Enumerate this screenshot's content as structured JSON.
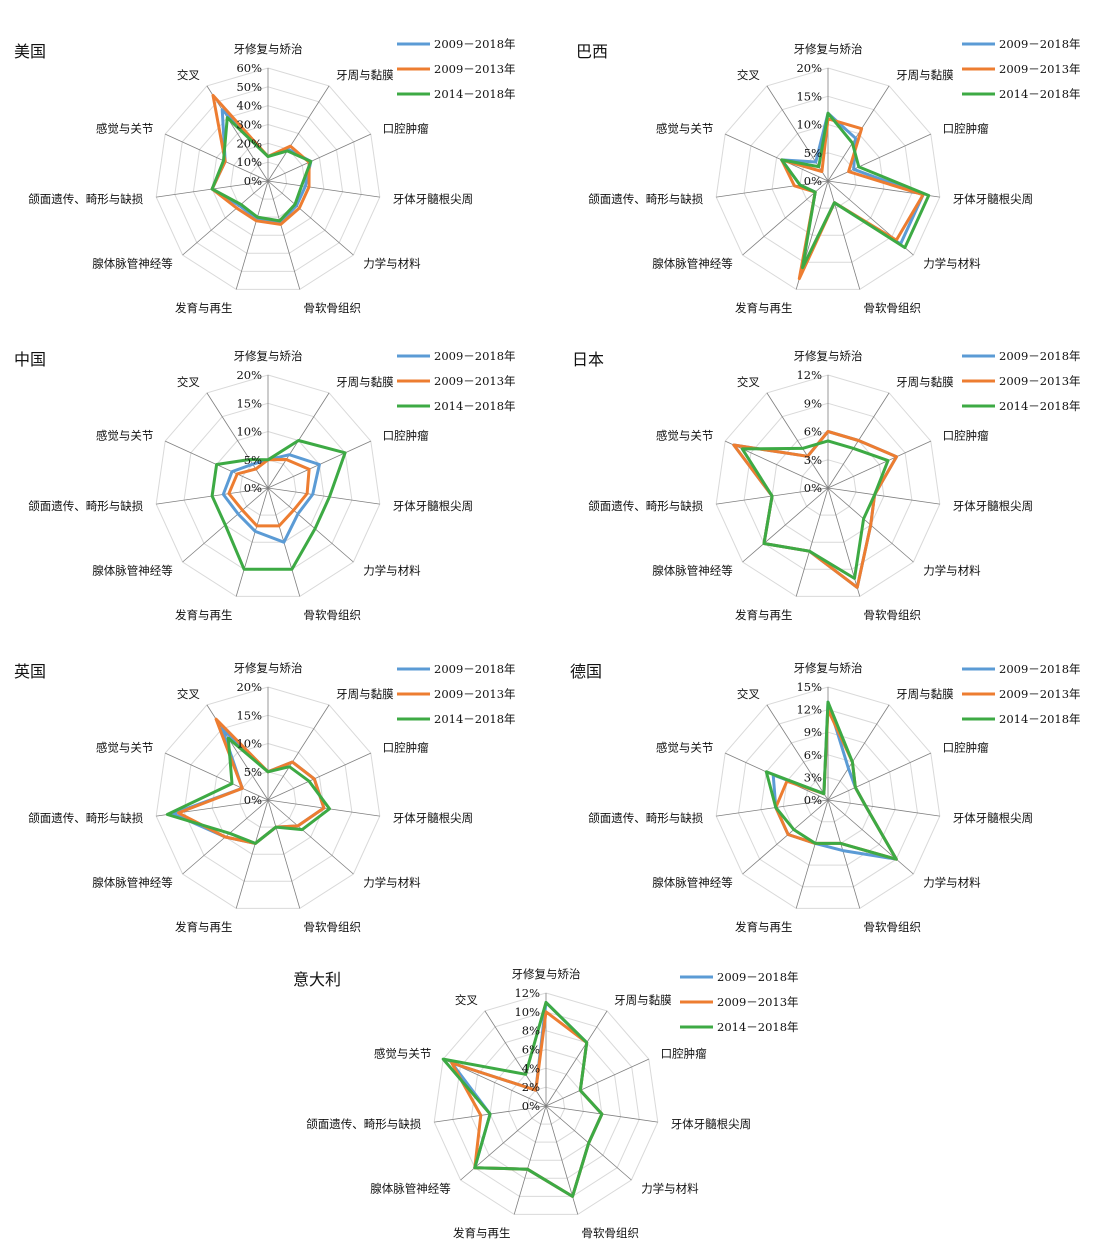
{
  "chart_data": {
    "type": "radar",
    "axes": [
      "牙修复与矫治",
      "牙周与黏膜",
      "口腔肿瘤",
      "牙体牙髓根尖周",
      "力学与材料",
      "骨软骨组织",
      "发育与再生",
      "腺体脉管神经等",
      "颌面遗传、畸形与缺损",
      "感觉与关节",
      "交叉"
    ],
    "legend": [
      "2009－2018年",
      "2009－2013年",
      "2014－2018年"
    ],
    "series_colors": [
      "#5b9bd5",
      "#ed7d31",
      "#3daa44"
    ],
    "charts": [
      {
        "title": "美国",
        "ticks": [
          "0%",
          "10%",
          "20%",
          "30%",
          "40%",
          "50%",
          "60%"
        ],
        "max": 60,
        "series": [
          {
            "name": "2009－2018年",
            "values": [
              13,
              20,
              25,
              20,
              20,
              23,
              21,
              20,
              30,
              25,
              45
            ]
          },
          {
            "name": "2009－2013年",
            "values": [
              13,
              22,
              24,
              22,
              22,
              24,
              22,
              22,
              30,
              25,
              54
            ]
          },
          {
            "name": "2014－2018年",
            "values": [
              13,
              19,
              25,
              18,
              19,
              22,
              20,
              19,
              30,
              26,
              40
            ]
          }
        ]
      },
      {
        "title": "巴西",
        "ticks": [
          "0%",
          "5%",
          "10%",
          "15%",
          "20%"
        ],
        "max": 20,
        "series": [
          {
            "name": "2009－2018年",
            "values": [
              12,
              9,
              5,
              17,
              17,
              4,
              17,
              3,
              5,
              9,
              4
            ]
          },
          {
            "name": "2009－2013年",
            "values": [
              11,
              11,
              4,
              17,
              16,
              4,
              18,
              3,
              6,
              9,
              2
            ]
          },
          {
            "name": "2014－2018年",
            "values": [
              12,
              8,
              6,
              18,
              18,
              4,
              16,
              3,
              5,
              9,
              3
            ]
          }
        ]
      },
      {
        "title": "中国",
        "ticks": [
          "0%",
          "5%",
          "10%",
          "15%",
          "20%"
        ],
        "max": 20,
        "series": [
          {
            "name": "2009－2018年",
            "values": [
              5,
              7,
              10,
              8,
              7,
              10,
              8,
              7,
              8,
              7,
              5
            ]
          },
          {
            "name": "2009－2013年",
            "values": [
              5,
              6,
              8,
              7,
              6,
              7,
              7,
              6,
              7,
              6,
              4
            ]
          },
          {
            "name": "2014－2018年",
            "values": [
              5,
              10,
              15,
              11,
              11,
              15,
              15,
              10,
              10,
              10,
              6
            ]
          }
        ]
      },
      {
        "title": "日本",
        "ticks": [
          "0%",
          "3%",
          "6%",
          "9%",
          "12%"
        ],
        "max": 12,
        "series": [
          {
            "name": "2009－2018年",
            "values": [
              6,
              6,
              8,
              5,
              6,
              11,
              7,
              9,
              6,
              11,
              4
            ]
          },
          {
            "name": "2009－2013年",
            "values": [
              6,
              6,
              8,
              5,
              6,
              11,
              7,
              9,
              6,
              11,
              4
            ]
          },
          {
            "name": "2014－2018年",
            "values": [
              5,
              5,
              7,
              5,
              5,
              10,
              7,
              9,
              6,
              10,
              5
            ]
          }
        ]
      },
      {
        "title": "英国",
        "ticks": [
          "0%",
          "5%",
          "10%",
          "15%",
          "20%"
        ],
        "max": 20,
        "series": [
          {
            "name": "2009－2018年",
            "values": [
              5,
              8,
              9,
              10,
              7,
              5,
              8,
              10,
              17,
              5,
              15
            ]
          },
          {
            "name": "2009－2013年",
            "values": [
              5,
              8,
              9,
              10,
              7,
              5,
              8,
              10,
              16,
              5,
              17
            ]
          },
          {
            "name": "2014－2018年",
            "values": [
              5,
              7,
              8,
              11,
              8,
              5,
              8,
              9,
              18,
              7,
              13
            ]
          }
        ]
      },
      {
        "title": "德国",
        "ticks": [
          "0%",
          "3%",
          "6%",
          "9%",
          "12%",
          "15%"
        ],
        "max": 15,
        "series": [
          {
            "name": "2009－2018年",
            "values": [
              13,
              5,
              4,
              5,
              12,
              7,
              6,
              7,
              7,
              8,
              1
            ]
          },
          {
            "name": "2009－2013年",
            "values": [
              12,
              6,
              4,
              5,
              12,
              6,
              6,
              7,
              7,
              6,
              1
            ]
          },
          {
            "name": "2014－2018年",
            "values": [
              13,
              6,
              4,
              5,
              12,
              6,
              6,
              6,
              7,
              9,
              1
            ]
          }
        ]
      },
      {
        "title": "意大利",
        "ticks": [
          "0%",
          "2%",
          "4%",
          "6%",
          "8%",
          "10%",
          "12%"
        ],
        "max": 12,
        "series": [
          {
            "name": "2009－2018年",
            "values": [
              11,
              8,
              4,
              6,
              6,
              10,
              7,
              10,
              6,
              11,
              2
            ]
          },
          {
            "name": "2009－2013年",
            "values": [
              10,
              8,
              4,
              6,
              6,
              10,
              7,
              10,
              7,
              11,
              2
            ]
          },
          {
            "name": "2014－2018年",
            "values": [
              11,
              8,
              4,
              6,
              6,
              10,
              7,
              10,
              6,
              12,
              4
            ]
          }
        ]
      }
    ]
  }
}
